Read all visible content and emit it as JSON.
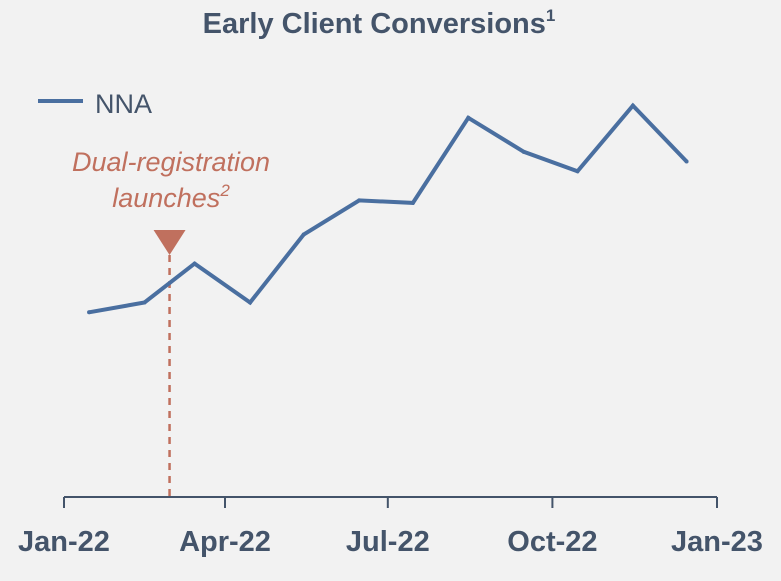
{
  "chart_data": {
    "type": "line",
    "title": "Early Client Conversions",
    "title_superscript": "1",
    "xlabel": "",
    "ylabel": "",
    "x_ticks": [
      "Jan-22",
      "Apr-22",
      "Jul-22",
      "Oct-22",
      "Jan-23"
    ],
    "y_axis_visible": false,
    "grid": false,
    "legend": {
      "position": "top-left"
    },
    "series": [
      {
        "name": "NNA",
        "color": "#4a6fa0",
        "x": [
          "2022-01-15",
          "2022-02-15",
          "2022-03-15",
          "2022-04-15",
          "2022-05-15",
          "2022-06-15",
          "2022-07-15",
          "2022-08-15",
          "2022-09-15",
          "2022-10-15",
          "2022-11-15",
          "2022-12-15"
        ],
        "values": [
          14,
          16,
          24,
          16,
          30,
          37,
          36.5,
          54,
          47,
          43,
          56.5,
          45
        ]
      }
    ],
    "ylim": [
      -24,
      70
    ],
    "annotation": {
      "text_line1": "Dual-registration",
      "text_line2": "launches",
      "superscript": "2",
      "date": "2022-03-01",
      "color": "#c0705e"
    }
  }
}
